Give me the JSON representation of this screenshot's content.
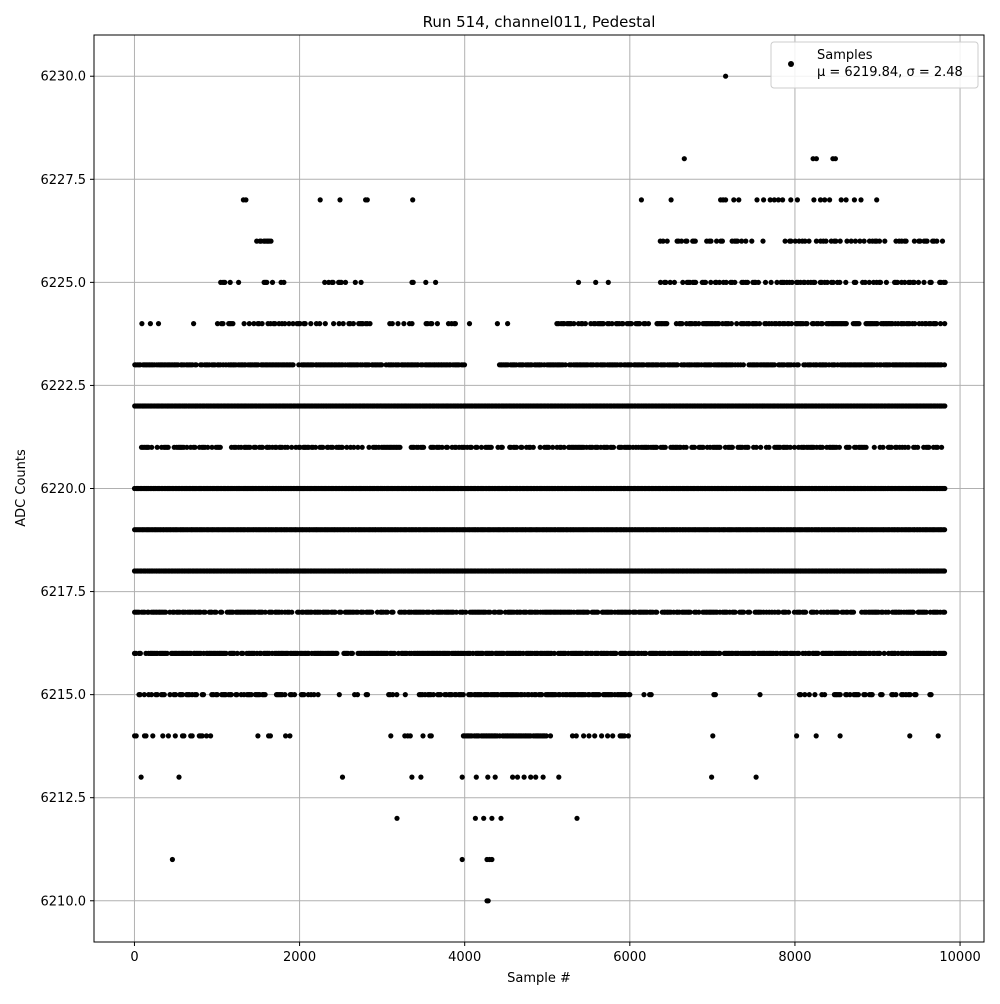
{
  "chart_data": {
    "type": "scatter",
    "title": "Run 514, channel011, Pedestal",
    "xlabel": "Sample #",
    "ylabel": "ADC Counts",
    "xlim": [
      -490,
      10290
    ],
    "ylim": [
      6209.0,
      6231.0
    ],
    "xticks": [
      0,
      2000,
      4000,
      6000,
      8000,
      10000
    ],
    "xtick_labels": [
      "0",
      "2000",
      "4000",
      "6000",
      "8000",
      "10000"
    ],
    "yticks": [
      6210.0,
      6212.5,
      6215.0,
      6217.5,
      6220.0,
      6222.5,
      6225.0,
      6227.5,
      6230.0
    ],
    "ytick_labels": [
      "6210.0",
      "6212.5",
      "6215.0",
      "6217.5",
      "6220.0",
      "6222.5",
      "6225.0",
      "6227.5",
      "6230.0"
    ],
    "grid": true,
    "marker_color": "#000000",
    "legend": {
      "placement": "top-right",
      "entries": [
        {
          "label": "Samples",
          "stats": "μ = 6219.84, σ = 2.48"
        }
      ]
    },
    "series": [
      {
        "name": "Samples",
        "x_range": [
          0,
          9819
        ],
        "levels": [
          {
            "y": 6210,
            "x": [
              4270,
              4285
            ]
          },
          {
            "y": 6211,
            "x": [
              460,
              3970,
              4270,
              4300,
              4330
            ]
          },
          {
            "y": 6212,
            "x": [
              3180,
              4130,
              4230,
              4330,
              4440,
              5360
            ]
          },
          {
            "y": 6213,
            "x": [
              80,
              540,
              2520,
              3360,
              3470,
              3970,
              4140,
              4280,
              4370,
              4580,
              4640,
              4720,
              4800,
              4860,
              4950,
              5140,
              6990,
              7530
            ]
          },
          {
            "y": 6230,
            "x": [
              7160
            ]
          },
          {
            "y": 6228,
            "x": [
              6660,
              8220,
              8260,
              8460,
              8490
            ]
          },
          {
            "y": 6227,
            "x": [
              1320,
              1350,
              2250,
              2490,
              2800,
              2820,
              3370,
              6140,
              6500,
              7100,
              7130,
              7160,
              7260,
              7320,
              7540,
              7620,
              7700,
              7750,
              7800,
              7850,
              7950,
              8030,
              8230,
              8310,
              8360,
              8420,
              8560,
              8620,
              8720,
              8800,
              8990
            ]
          }
        ],
        "dense_levels": [
          {
            "y": 6214,
            "segments": [
              [
                0,
                1000,
                0.25
              ],
              [
                1200,
                1950,
                0.12
              ],
              [
                3100,
                3700,
                0.15
              ],
              [
                3980,
                5050,
                0.9
              ],
              [
                5300,
                6000,
                0.3
              ],
              [
                6200,
                6300,
                0.1
              ],
              [
                6850,
                7050,
                0.1
              ],
              [
                7950,
                8850,
                0.08
              ],
              [
                9250,
                9400,
                0.2
              ],
              [
                9700,
                9750,
                0.1
              ]
            ]
          },
          {
            "y": 6215,
            "segments": [
              [
                0,
                1950,
                0.55
              ],
              [
                1950,
                2700,
                0.3
              ],
              [
                2700,
                3450,
                0.2
              ],
              [
                3450,
                6000,
                0.7
              ],
              [
                6100,
                6300,
                0.2
              ],
              [
                6950,
                7100,
                0.2
              ],
              [
                7350,
                7600,
                0.1
              ],
              [
                8050,
                9810,
                0.25
              ]
            ]
          },
          {
            "y": 6216,
            "segments": [
              [
                0,
                9810,
                0.8
              ]
            ]
          },
          {
            "y": 6217,
            "segments": [
              [
                0,
                9810,
                0.7
              ]
            ]
          },
          {
            "y": 6218,
            "segments": [
              [
                0,
                9819,
                1.0
              ]
            ]
          },
          {
            "y": 6219,
            "segments": [
              [
                0,
                9819,
                1.0
              ]
            ]
          },
          {
            "y": 6220,
            "segments": [
              [
                0,
                9819,
                1.0
              ]
            ]
          },
          {
            "y": 6221,
            "segments": [
              [
                0,
                9819,
                0.55
              ]
            ]
          },
          {
            "y": 6222,
            "segments": [
              [
                0,
                9819,
                1.0
              ]
            ]
          },
          {
            "y": 6223,
            "segments": [
              [
                0,
                4000,
                0.85
              ],
              [
                4000,
                4400,
                0.0
              ],
              [
                4400,
                9819,
                0.85
              ]
            ]
          },
          {
            "y": 6224,
            "segments": [
              [
                0,
                1000,
                0.08
              ],
              [
                1000,
                2000,
                0.4
              ],
              [
                2000,
                3970,
                0.35
              ],
              [
                3970,
                5100,
                0.02
              ],
              [
                5100,
                9819,
                0.6
              ]
            ]
          },
          {
            "y": 6225,
            "segments": [
              [
                1040,
                1840,
                0.25
              ],
              [
                2300,
                2750,
                0.25
              ],
              [
                3000,
                3700,
                0.1
              ],
              [
                5140,
                5800,
                0.05
              ],
              [
                6350,
                9819,
                0.4
              ]
            ]
          },
          {
            "y": 6226,
            "segments": [
              [
                1480,
                1660,
                0.7
              ],
              [
                2900,
                3450,
                0.05
              ],
              [
                6350,
                9819,
                0.3
              ]
            ]
          }
        ]
      }
    ]
  }
}
